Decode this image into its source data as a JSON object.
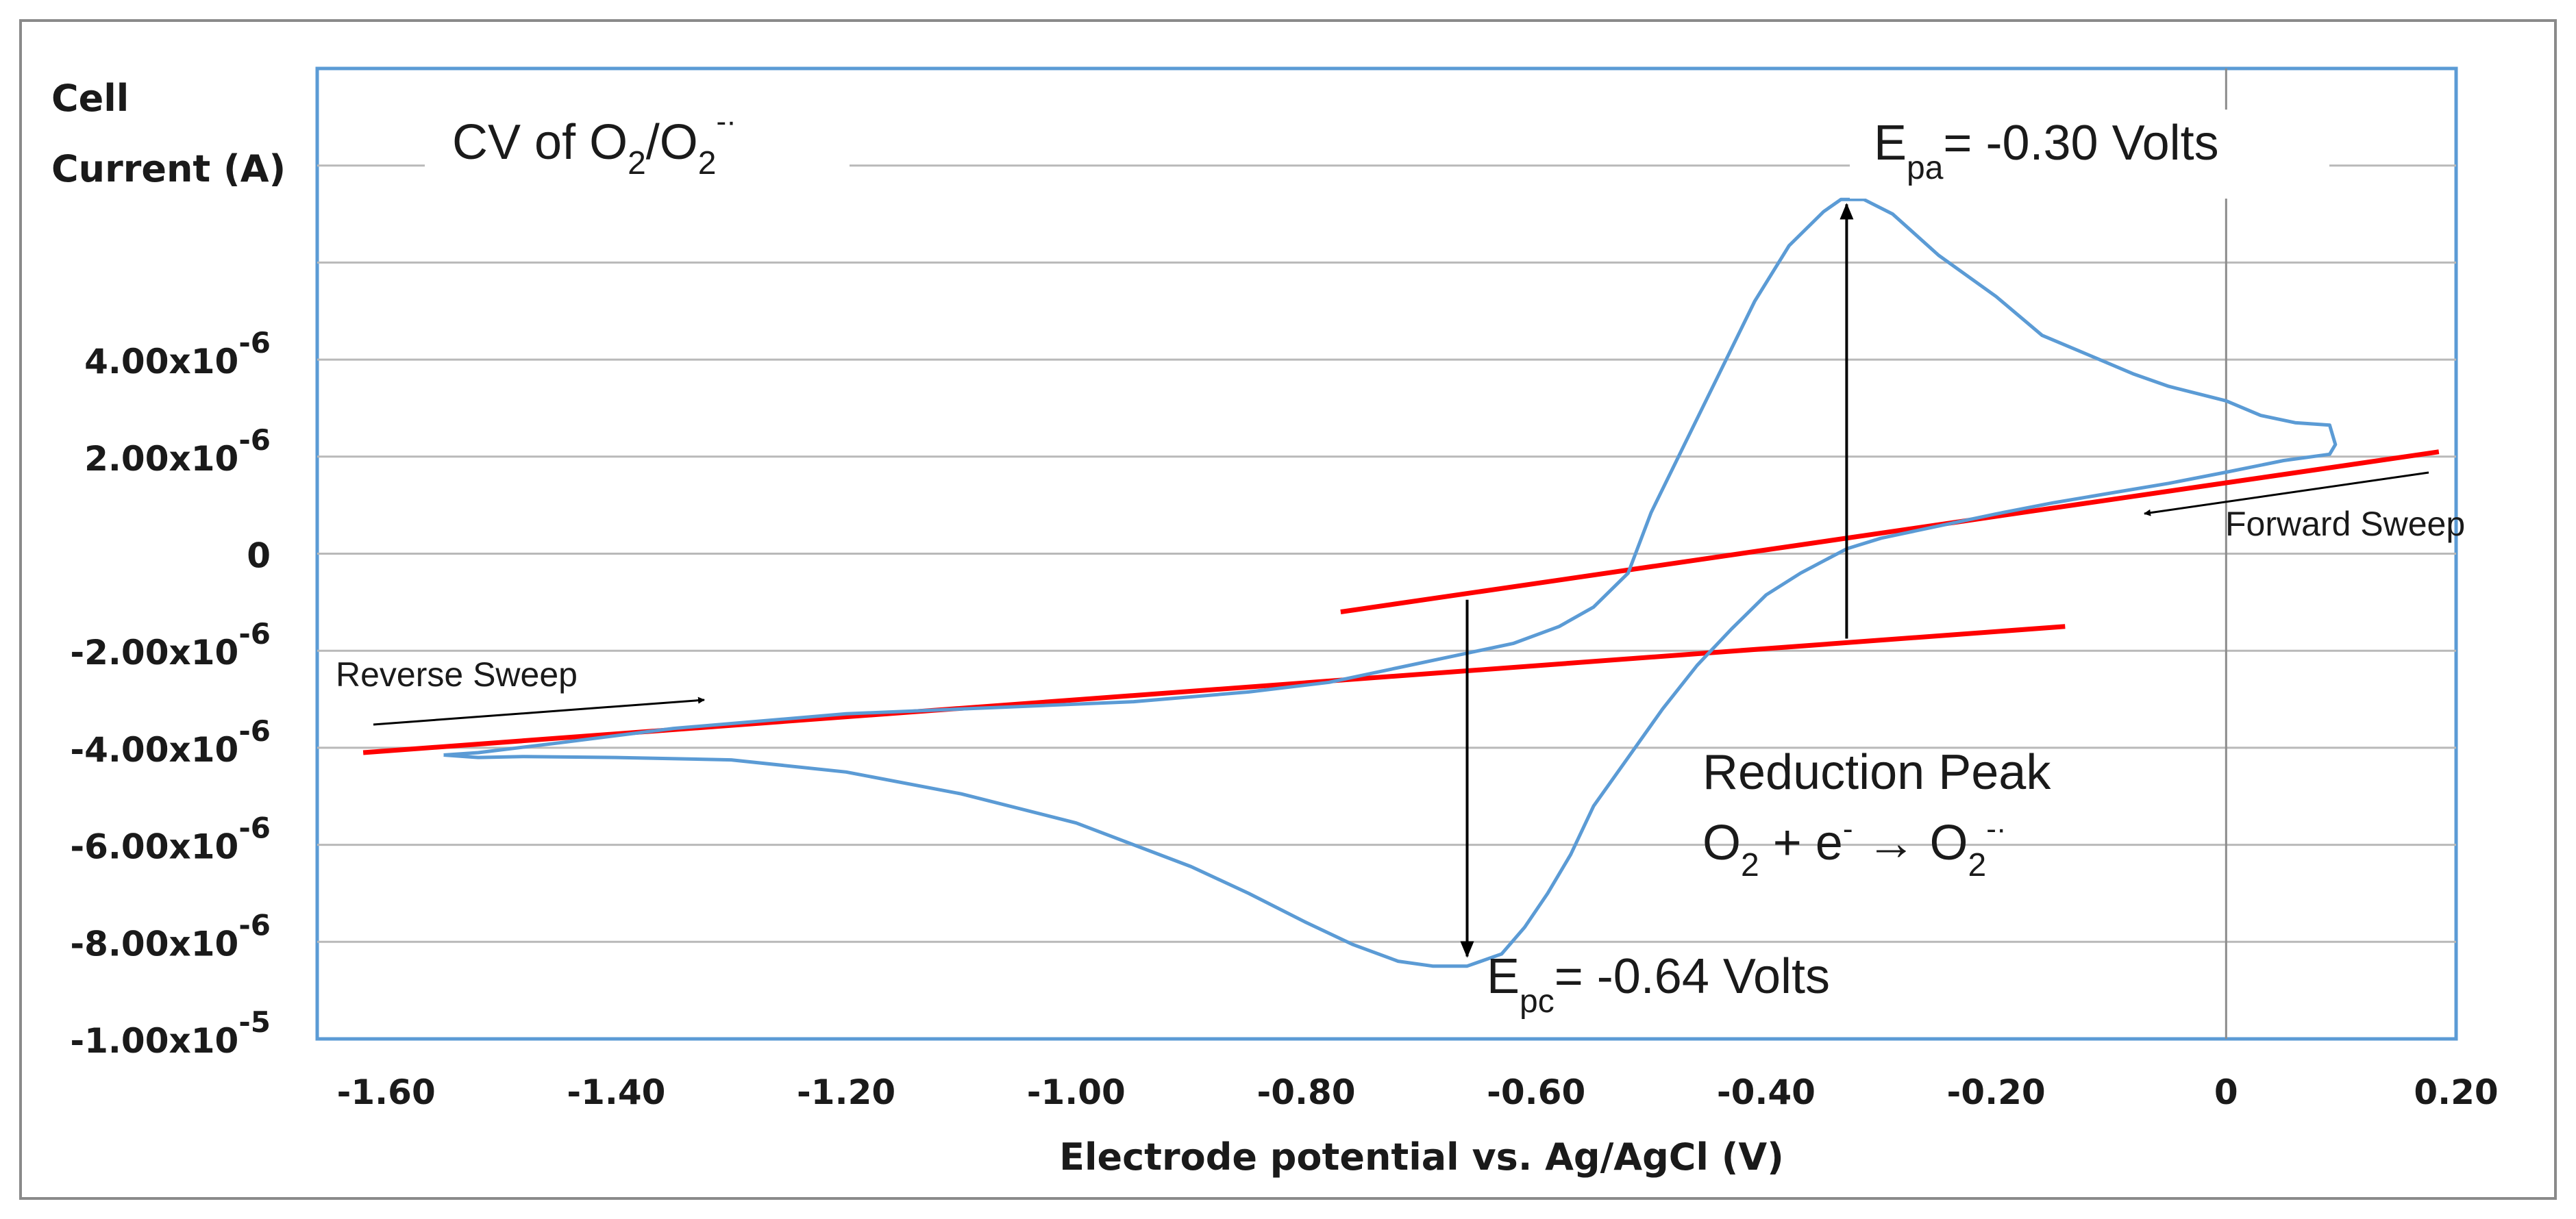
{
  "chart_data": {
    "type": "line",
    "title": "CV of O2/O2-·",
    "xlabel": "Electrode potential vs. Ag/AgCl (V)",
    "ylabel": "Cell Current (A)",
    "xlim": [
      -1.66,
      0.2
    ],
    "ylim": [
      -1e-05,
      1e-05
    ],
    "x_ticks": [
      {
        "v": -1.6,
        "label": "-1.60"
      },
      {
        "v": -1.4,
        "label": "-1.40"
      },
      {
        "v": -1.2,
        "label": "-1.20"
      },
      {
        "v": -1.0,
        "label": "-1.00"
      },
      {
        "v": -0.8,
        "label": "-0.80"
      },
      {
        "v": -0.6,
        "label": "-0.60"
      },
      {
        "v": -0.4,
        "label": "-0.40"
      },
      {
        "v": -0.2,
        "label": "-0.20"
      },
      {
        "v": 0,
        "label": "0"
      },
      {
        "v": 0.2,
        "label": "0.20"
      }
    ],
    "y_ticks": [
      {
        "v": 4e-06,
        "base": "4.00x10",
        "exp": "-6"
      },
      {
        "v": 2e-06,
        "base": "2.00x10",
        "exp": "-6"
      },
      {
        "v": 0,
        "base": "0",
        "exp": ""
      },
      {
        "v": -2e-06,
        "base": "-2.00x10",
        "exp": "-6"
      },
      {
        "v": -4e-06,
        "base": "-4.00x10",
        "exp": "-6"
      },
      {
        "v": -6e-06,
        "base": "-6.00x10",
        "exp": "-6"
      },
      {
        "v": -8e-06,
        "base": "-8.00x10",
        "exp": "-6"
      },
      {
        "v": -1e-05,
        "base": "-1.00x10",
        "exp": "-5"
      }
    ],
    "gridlines_y": [
      8e-06,
      6e-06,
      4e-06,
      2e-06,
      0,
      -2e-06,
      -4e-06,
      -6e-06,
      -8e-06
    ],
    "series": [
      {
        "name": "CV curve",
        "color": "#5b9bd5",
        "points": [
          [
            -1.55,
            -4.15e-06
          ],
          [
            -1.52,
            -4.2e-06
          ],
          [
            -1.48,
            -4.18e-06
          ],
          [
            -1.4,
            -4.2e-06
          ],
          [
            -1.3,
            -4.25e-06
          ],
          [
            -1.2,
            -4.5e-06
          ],
          [
            -1.1,
            -4.95e-06
          ],
          [
            -1.0,
            -5.55e-06
          ],
          [
            -0.9,
            -6.45e-06
          ],
          [
            -0.85,
            -7e-06
          ],
          [
            -0.8,
            -7.6e-06
          ],
          [
            -0.76,
            -8.05e-06
          ],
          [
            -0.72,
            -8.4e-06
          ],
          [
            -0.69,
            -8.5e-06
          ],
          [
            -0.66,
            -8.5e-06
          ],
          [
            -0.63,
            -8.25e-06
          ],
          [
            -0.61,
            -7.7e-06
          ],
          [
            -0.59,
            -7e-06
          ],
          [
            -0.57,
            -6.2e-06
          ],
          [
            -0.55,
            -5.2e-06
          ],
          [
            -0.52,
            -4.2e-06
          ],
          [
            -0.49,
            -3.2e-06
          ],
          [
            -0.46,
            -2.3e-06
          ],
          [
            -0.43,
            -1.55e-06
          ],
          [
            -0.4,
            -8.5e-07
          ],
          [
            -0.37,
            -4e-07
          ],
          [
            -0.33,
            1e-07
          ],
          [
            -0.3,
            3.2e-07
          ],
          [
            -0.25,
            5.7e-07
          ],
          [
            -0.2,
            8.2e-07
          ],
          [
            -0.15,
            1.05e-06
          ],
          [
            -0.1,
            1.25e-06
          ],
          [
            -0.05,
            1.45e-06
          ],
          [
            0.0,
            1.68e-06
          ],
          [
            0.05,
            1.92e-06
          ],
          [
            0.09,
            2.05e-06
          ],
          [
            0.095,
            2.25e-06
          ],
          [
            0.09,
            2.65e-06
          ],
          [
            0.06,
            2.7e-06
          ],
          [
            0.03,
            2.85e-06
          ],
          [
            0.0,
            3.15e-06
          ],
          [
            -0.05,
            3.45e-06
          ],
          [
            -0.08,
            3.7e-06
          ],
          [
            -0.12,
            4.1e-06
          ],
          [
            -0.16,
            4.5e-06
          ],
          [
            -0.2,
            5.3e-06
          ],
          [
            -0.25,
            6.15e-06
          ],
          [
            -0.29,
            7e-06
          ],
          [
            -0.315,
            7.3e-06
          ],
          [
            -0.335,
            7.3e-06
          ],
          [
            -0.35,
            7.05e-06
          ],
          [
            -0.38,
            6.35e-06
          ],
          [
            -0.41,
            5.2e-06
          ],
          [
            -0.44,
            3.75e-06
          ],
          [
            -0.47,
            2.3e-06
          ],
          [
            -0.5,
            8.5e-07
          ],
          [
            -0.52,
            -4e-07
          ],
          [
            -0.55,
            -1.1e-06
          ],
          [
            -0.58,
            -1.5e-06
          ],
          [
            -0.62,
            -1.85e-06
          ],
          [
            -0.67,
            -2.1e-06
          ],
          [
            -0.72,
            -2.35e-06
          ],
          [
            -0.78,
            -2.65e-06
          ],
          [
            -0.85,
            -2.85e-06
          ],
          [
            -0.95,
            -3.05e-06
          ],
          [
            -1.05,
            -3.15e-06
          ],
          [
            -1.2,
            -3.3e-06
          ],
          [
            -1.35,
            -3.6e-06
          ],
          [
            -1.45,
            -3.9e-06
          ],
          [
            -1.52,
            -4.1e-06
          ],
          [
            -1.55,
            -4.15e-06
          ]
        ]
      }
    ],
    "baselines": [
      {
        "name": "reverse baseline",
        "color": "#ff0000",
        "points": [
          [
            -1.62,
            -4.1e-06
          ],
          [
            -0.14,
            -1.5e-06
          ]
        ]
      },
      {
        "name": "forward baseline",
        "color": "#ff0000",
        "points": [
          [
            -0.77,
            -1.2e-06
          ],
          [
            0.185,
            2.1e-06
          ]
        ]
      }
    ],
    "peak_arrows": [
      {
        "name": "anodic peak arrow",
        "x": -0.33,
        "from": -1.75e-06,
        "to": 7.2e-06
      },
      {
        "name": "cathodic peak arrow",
        "x": -0.66,
        "from": -9.5e-07,
        "to": -8.3e-06
      }
    ],
    "annotations": {
      "epa": {
        "main": "E",
        "sub": "pa",
        "rest": "= -0.30 Volts"
      },
      "epc": {
        "main": "E",
        "sub": "pc",
        "rest": "= -0.64 Volts"
      },
      "title_label": {
        "pre": "CV of O",
        "sub1": "2",
        "mid": "/O",
        "sub2": "2",
        "sup": "-·"
      },
      "reaction_title": "Reduction Peak",
      "reaction": {
        "a": "O",
        "a_sub": "2",
        "b": " + e",
        "b_sup": "-",
        "arrow": " → O",
        "c_sub": "2",
        "c_sup": "-·"
      },
      "forward_sweep": "Forward Sweep",
      "reverse_sweep": "Reverse Sweep",
      "ylabel_line1": "Cell",
      "ylabel_line2": "Current (A)"
    }
  }
}
